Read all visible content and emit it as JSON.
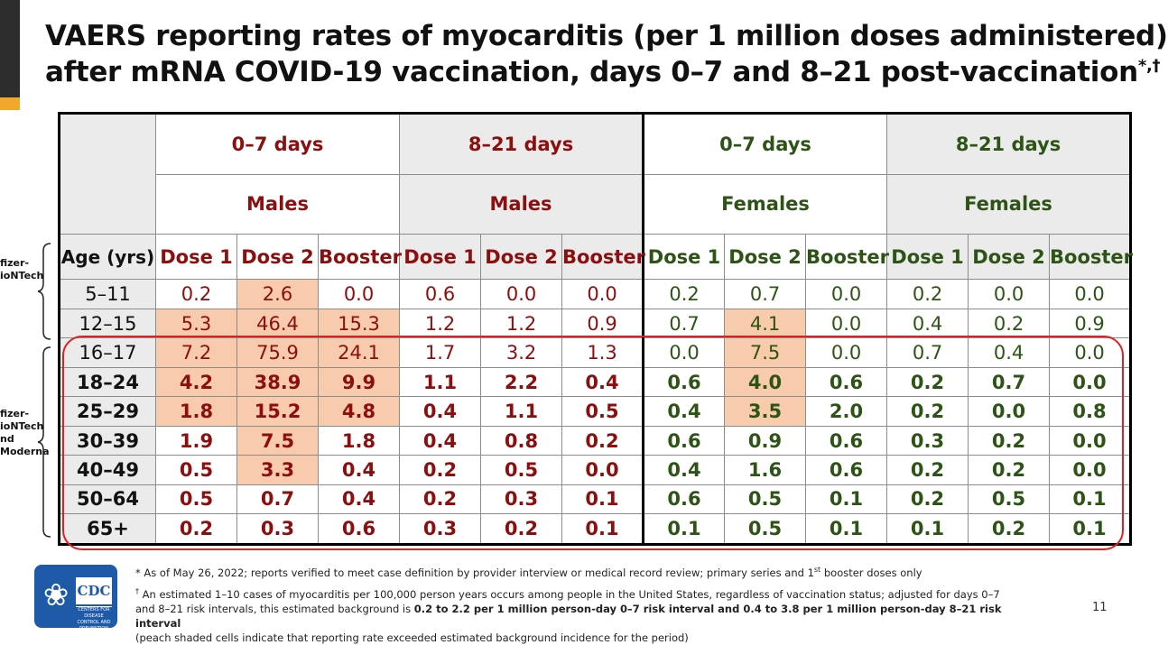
{
  "title": {
    "line1": "VAERS reporting rates of myocarditis (per 1 million doses administered)",
    "line2": "after mRNA COVID-19 vaccination, days 0–7 and 8–21 post-vaccination",
    "marks": "*,†"
  },
  "table": {
    "periods": [
      "0–7 days",
      "8–21 days",
      "0–7 days",
      "8–21 days"
    ],
    "sexes": [
      "Males",
      "Males",
      "Females",
      "Females"
    ],
    "age_header": "Age (yrs)",
    "dose_headers": [
      "Dose 1",
      "Dose 2",
      "Booster",
      "Dose 1",
      "Dose 2",
      "Booster",
      "Dose 1",
      "Dose 2",
      "Booster",
      "Dose 1",
      "Dose 2",
      "Booster"
    ],
    "rows": [
      {
        "age": "5–11",
        "values": [
          "0.2",
          "2.6",
          "0.0",
          "0.6",
          "0.0",
          "0.0",
          "0.2",
          "0.7",
          "0.0",
          "0.2",
          "0.0",
          "0.0"
        ]
      },
      {
        "age": "12–15",
        "values": [
          "5.3",
          "46.4",
          "15.3",
          "1.2",
          "1.2",
          "0.9",
          "0.7",
          "4.1",
          "0.0",
          "0.4",
          "0.2",
          "0.9"
        ]
      },
      {
        "age": "16–17",
        "values": [
          "7.2",
          "75.9",
          "24.1",
          "1.7",
          "3.2",
          "1.3",
          "0.0",
          "7.5",
          "0.0",
          "0.7",
          "0.4",
          "0.0"
        ]
      },
      {
        "age": "18–24",
        "values": [
          "4.2",
          "38.9",
          "9.9",
          "1.1",
          "2.2",
          "0.4",
          "0.6",
          "4.0",
          "0.6",
          "0.2",
          "0.7",
          "0.0"
        ]
      },
      {
        "age": "25–29",
        "values": [
          "1.8",
          "15.2",
          "4.8",
          "0.4",
          "1.1",
          "0.5",
          "0.4",
          "3.5",
          "2.0",
          "0.2",
          "0.0",
          "0.8"
        ]
      },
      {
        "age": "30–39",
        "values": [
          "1.9",
          "7.5",
          "1.8",
          "0.4",
          "0.8",
          "0.2",
          "0.6",
          "0.9",
          "0.6",
          "0.3",
          "0.2",
          "0.0"
        ]
      },
      {
        "age": "40–49",
        "values": [
          "0.5",
          "3.3",
          "0.4",
          "0.2",
          "0.5",
          "0.0",
          "0.4",
          "1.6",
          "0.6",
          "0.2",
          "0.2",
          "0.0"
        ]
      },
      {
        "age": "50–64",
        "values": [
          "0.5",
          "0.7",
          "0.4",
          "0.2",
          "0.3",
          "0.1",
          "0.6",
          "0.5",
          "0.1",
          "0.2",
          "0.5",
          "0.1"
        ]
      },
      {
        "age": "65+",
        "values": [
          "0.2",
          "0.3",
          "0.6",
          "0.3",
          "0.2",
          "0.1",
          "0.1",
          "0.5",
          "0.1",
          "0.1",
          "0.2",
          "0.1"
        ]
      }
    ]
  },
  "side_labels": {
    "group1": [
      "fizer-",
      "ioNTech"
    ],
    "group2": [
      "fizer-",
      "ioNTech",
      "nd",
      "Moderna"
    ]
  },
  "footnotes": {
    "note1_mark": "*",
    "note1": "As of May 26, 2022; reports verified to meet case definition by provider interview or medical record review; primary series and 1",
    "note1_sup": "st",
    "note1_end": " booster doses only",
    "note2_mark": "†",
    "note2_a": "An estimated 1–10 cases of myocarditis per 100,000 person years occurs among people in the United States, regardless of vaccination status; adjusted for days 0–7",
    "note2_b": "and 8–21 risk intervals, this estimated background is ",
    "note2_bold": "0.2 to 2.2 per 1 million person-day 0–7 risk interval and 0.4 to 3.8 per 1 million person-day 8–21 risk interval",
    "note2_c": "(peach shaded cells indicate that reporting rate exceeded estimated background incidence for the period)"
  },
  "logo": {
    "name": "CDC",
    "sub": "CENTERS FOR DISEASE CONTROL AND PREVENTION"
  },
  "page_number": "11",
  "colors": {
    "male": "#8b0f0f",
    "female": "#2d5416",
    "shade": "#f8cbad",
    "highlight_box": "#e02020"
  }
}
